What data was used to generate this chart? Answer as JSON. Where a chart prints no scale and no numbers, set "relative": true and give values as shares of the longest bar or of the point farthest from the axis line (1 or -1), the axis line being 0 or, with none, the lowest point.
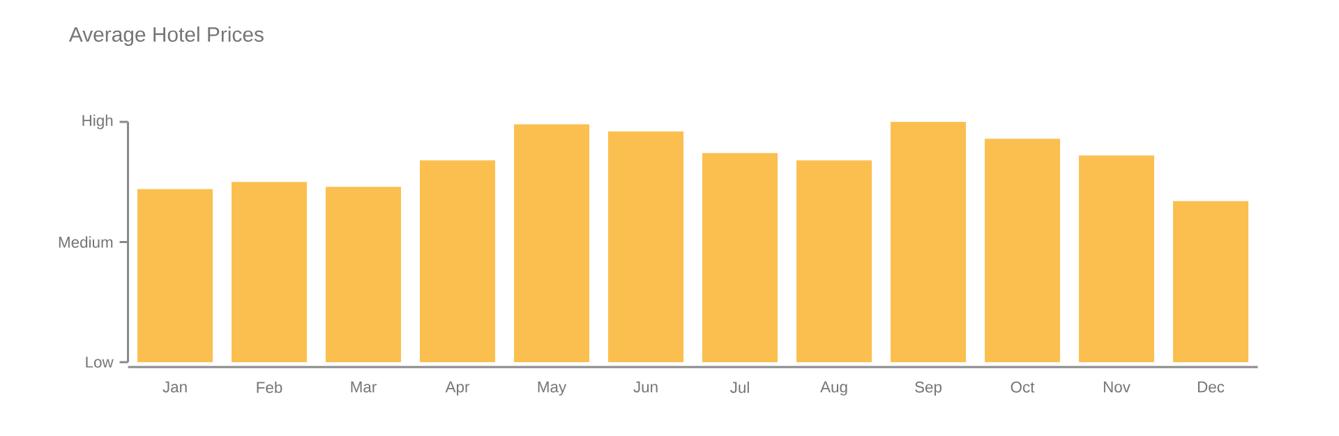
{
  "chart_data": {
    "type": "bar",
    "title": "Average Hotel Prices",
    "categories": [
      "Jan",
      "Feb",
      "Mar",
      "Apr",
      "May",
      "Jun",
      "Jul",
      "Aug",
      "Sep",
      "Oct",
      "Nov",
      "Dec"
    ],
    "values": [
      0.72,
      0.75,
      0.73,
      0.84,
      0.99,
      0.96,
      0.87,
      0.84,
      1.0,
      0.93,
      0.86,
      0.67
    ],
    "color": "#fbbf4f",
    "relative": true,
    "annotations": [
      "Low",
      "Medium",
      "High"
    ]
  }
}
